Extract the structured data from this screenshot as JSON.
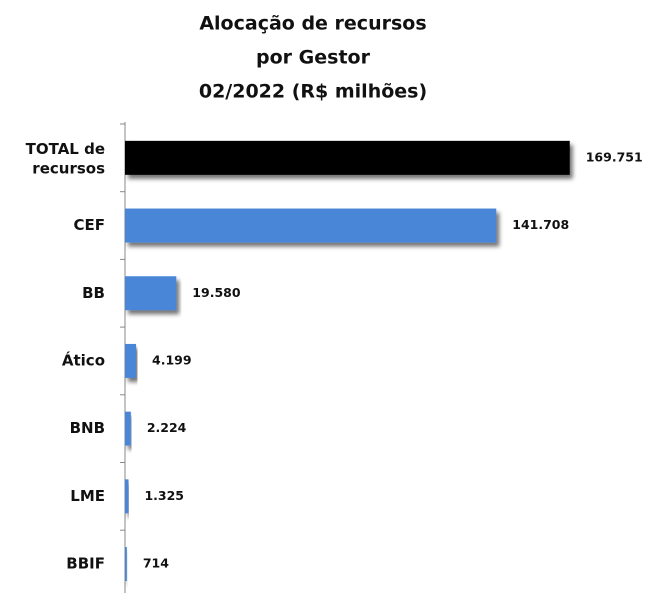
{
  "chart_data": {
    "type": "bar",
    "orientation": "horizontal",
    "title": [
      "Alocação de recursos",
      "por Gestor",
      "02/2022 (R$ milhões)"
    ],
    "categories": [
      "TOTAL de recursos",
      "CEF",
      "BB",
      "Ático",
      "BNB",
      "LME",
      "BBIF"
    ],
    "values": [
      169751,
      141708,
      19580,
      4199,
      2224,
      1325,
      714
    ],
    "value_labels": [
      "169.751",
      "141.708",
      "19.580",
      "4.199",
      "2.224",
      "1.325",
      "714"
    ],
    "colors": [
      "#000000",
      "#4a86d8",
      "#4a86d8",
      "#4a86d8",
      "#4a86d8",
      "#4a86d8",
      "#4a86d8"
    ],
    "xlim": [
      0,
      200000
    ]
  }
}
